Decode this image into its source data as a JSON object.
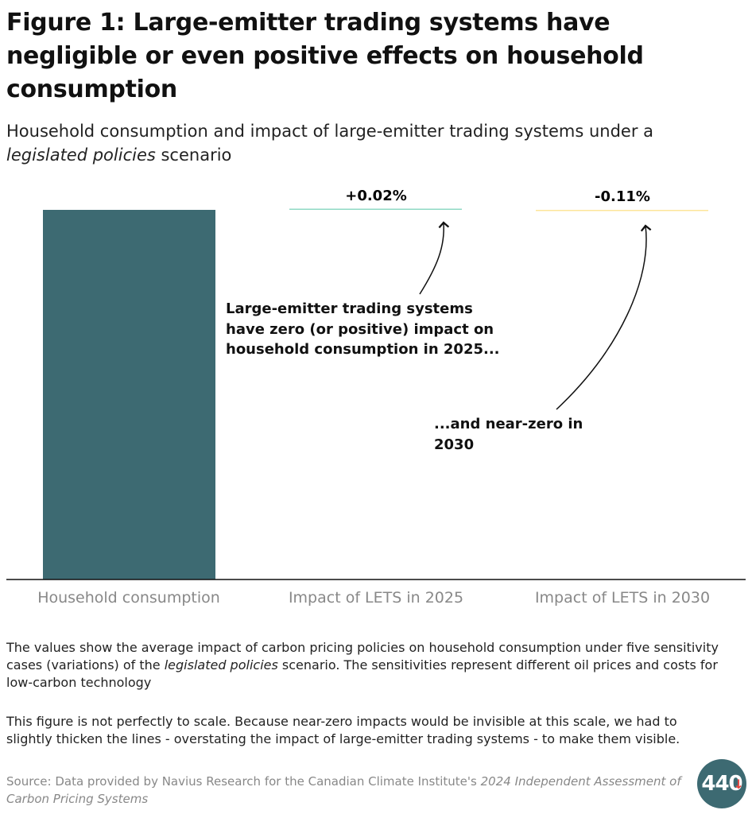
{
  "title": "Figure 1: Large-emitter trading systems have negligible or even positive effects on household consumption",
  "subtitle_parts": [
    "Household consumption and impact of large-emitter trading systems under a ",
    "legislated policies",
    " scenario"
  ],
  "chart_data": {
    "type": "bar",
    "categories": [
      "Household consumption",
      "Impact of LETS in 2025",
      "Impact of LETS in 2030"
    ],
    "values": [
      null,
      0.02,
      -0.11
    ],
    "data_labels": [
      "",
      "+0.02%",
      "-0.11%"
    ],
    "colors": [
      "#3d6a72",
      "#8fd9c4",
      "#fde59a"
    ],
    "grid": false,
    "annotations": [
      "Large-emitter trading systems have zero (or positive) impact on household consumption in 2025...",
      "...and near-zero in 2030"
    ]
  },
  "notes": {
    "p1_parts": [
      "The values show the average impact of carbon pricing policies on household consumption under five sensitivity cases (variations) of the ",
      "legislated policies",
      " scenario. The sensitivities represent different oil prices and costs for low-carbon technology"
    ],
    "p2": "This figure is not perfectly to scale. Because near-zero impacts would be invisible at this scale, we had to slightly thicken the lines - overstating the impact of large-emitter trading systems - to make them visible."
  },
  "source_parts": [
    "Source: Data provided by Navius Research for the Canadian Climate Institute's ",
    "2024 Independent Assessment of Carbon Pricing Systems"
  ],
  "logo": {
    "text": "440",
    "arrow_color": "#e8463f"
  }
}
